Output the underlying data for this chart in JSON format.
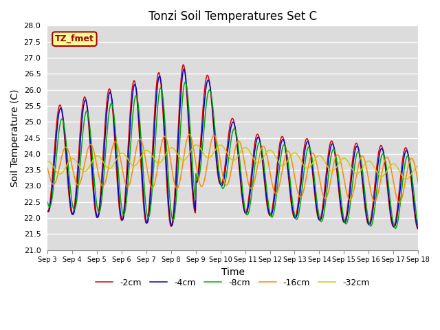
{
  "title": "Tonzi Soil Temperatures Set C",
  "xlabel": "Time",
  "ylabel": "Soil Temperature (C)",
  "ylim": [
    21.0,
    28.0
  ],
  "yticks": [
    21.0,
    21.5,
    22.0,
    22.5,
    23.0,
    23.5,
    24.0,
    24.5,
    25.0,
    25.5,
    26.0,
    26.5,
    27.0,
    27.5,
    28.0
  ],
  "xtick_labels": [
    "Sep 3",
    "Sep 4",
    "Sep 5",
    "Sep 6",
    "Sep 7",
    "Sep 8",
    "Sep 9",
    "Sep 10",
    "Sep 11",
    "Sep 12",
    "Sep 13",
    "Sep 14",
    "Sep 15",
    "Sep 16",
    "Sep 17",
    "Sep 18"
  ],
  "legend_labels": [
    "-2cm",
    "-4cm",
    "-8cm",
    "-16cm",
    "-32cm"
  ],
  "line_colors": [
    "#dd0000",
    "#0000cc",
    "#00aa00",
    "#ff8800",
    "#cccc00"
  ],
  "bg_color": "#dcdcdc",
  "plot_bg": "#dcdcdc",
  "fig_bg": "#ffffff",
  "annotation_text": "TZ_fmet",
  "annotation_bg": "#ffff99",
  "annotation_border": "#aa0000"
}
